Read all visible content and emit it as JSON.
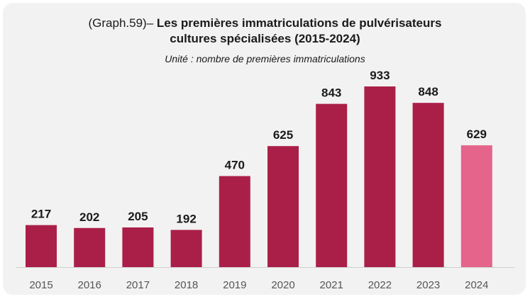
{
  "chart_data": {
    "type": "bar",
    "title_prefix": "(Graph.59)– ",
    "title_line1": "Les premières immatriculations de pulvérisateurs",
    "title_line2": "cultures spécialisées (2015-2024)",
    "subtitle": "Unité : nombre de premières immatriculations",
    "categories": [
      "2015",
      "2016",
      "2017",
      "2018",
      "2019",
      "2020",
      "2021",
      "2022",
      "2023",
      "2024"
    ],
    "values": [
      217,
      202,
      205,
      192,
      470,
      625,
      843,
      933,
      848,
      629
    ],
    "data_labels": [
      "217",
      "202",
      "205",
      "192",
      "470",
      "625",
      "843",
      "933",
      "848",
      "629"
    ],
    "ylim": [
      0,
      933
    ],
    "grid": false,
    "legend": "none",
    "colors": {
      "bar": "#aa1f48",
      "bar_highlight": "#e5648b",
      "text": "#1a1a1a",
      "tick_text": "#555555",
      "background": "#f2f2f2"
    },
    "highlight_index": 9
  }
}
